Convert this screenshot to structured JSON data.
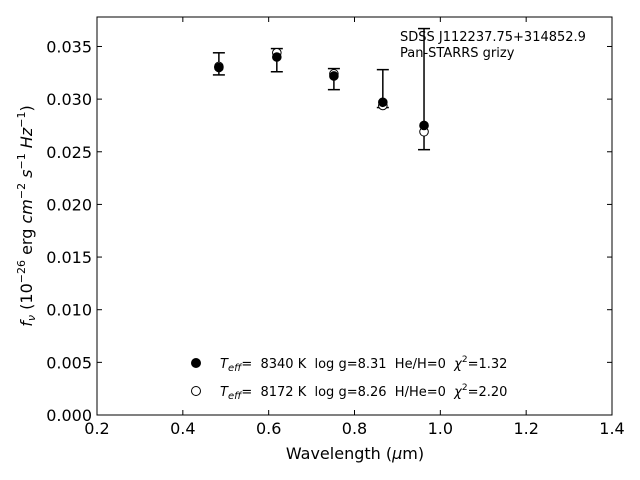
{
  "chart_data": {
    "type": "scatter",
    "title": "",
    "xlabel": "Wavelength (μm)",
    "ylabel": "fν (10⁻²⁶ erg cm⁻² s⁻¹ Hz⁻¹)",
    "xlim": [
      0.2,
      1.4
    ],
    "ylim": [
      0.0,
      0.0378
    ],
    "xticks": [
      0.2,
      0.4,
      0.6,
      0.8,
      1.0,
      1.2,
      1.4
    ],
    "xtick_labels": [
      "0.2",
      "0.4",
      "0.6",
      "0.8",
      "1.0",
      "1.2",
      "1.4"
    ],
    "yticks": [
      0.0,
      0.005,
      0.01,
      0.015,
      0.02,
      0.025,
      0.03,
      0.035
    ],
    "ytick_labels": [
      "0.000",
      "0.005",
      "0.010",
      "0.015",
      "0.020",
      "0.025",
      "0.030",
      "0.035"
    ],
    "grid": false,
    "annotation": [
      "SDSS J112237.75+314852.9",
      "Pan-STARRS grizy"
    ],
    "legend_position": "lower-center",
    "observed": {
      "x": [
        0.484,
        0.619,
        0.752,
        0.866,
        0.962
      ],
      "y": [
        0.033,
        0.034,
        0.0322,
        0.0297,
        0.0275
      ],
      "yerr_low": [
        0.0323,
        0.0326,
        0.0309,
        0.0292,
        0.0252
      ],
      "yerr_high": [
        0.0344,
        0.0348,
        0.0329,
        0.0328,
        0.0367
      ]
    },
    "series": [
      {
        "name": "T_eff= 8340 K log g=8.31 He/H=0 χ²=1.32",
        "marker": "filled-circle",
        "x": [
          0.484,
          0.619,
          0.752,
          0.866,
          0.962
        ],
        "y": [
          0.033,
          0.034,
          0.0322,
          0.0297,
          0.0275
        ]
      },
      {
        "name": "T_eff= 8172 K log g=8.26 H/He=0 χ²=2.20",
        "marker": "open-circle",
        "x": [
          0.484,
          0.619,
          0.752,
          0.866,
          0.962
        ],
        "y": [
          0.0331,
          0.0344,
          0.0324,
          0.0294,
          0.0269
        ]
      }
    ],
    "legend": [
      {
        "teff_label": "T",
        "teff_sub": "eff",
        "teff_value": "=  8340 K  log g=8.31  He/H=0  ",
        "chi_label": "χ",
        "chi_sup": "2",
        "chi_value": "=1.32"
      },
      {
        "teff_label": "T",
        "teff_sub": "eff",
        "teff_value": "=  8172 K  log g=8.26  H/He=0  ",
        "chi_label": "χ",
        "chi_sup": "2",
        "chi_value": "=2.20"
      }
    ],
    "axis_title_parts": {
      "x_main": "Wavelength (",
      "x_mu": "μ",
      "x_unit": "m)",
      "y_f": "f",
      "y_nu": "ν",
      "y_open": " (10",
      "y_exp1": "−26",
      "y_erg": " erg ",
      "y_cm": "cm",
      "y_exp2": "−2",
      "y_s": " s",
      "y_exp3": "−1",
      "y_hz": " Hz",
      "y_exp4": "−1",
      "y_close": ")"
    }
  }
}
